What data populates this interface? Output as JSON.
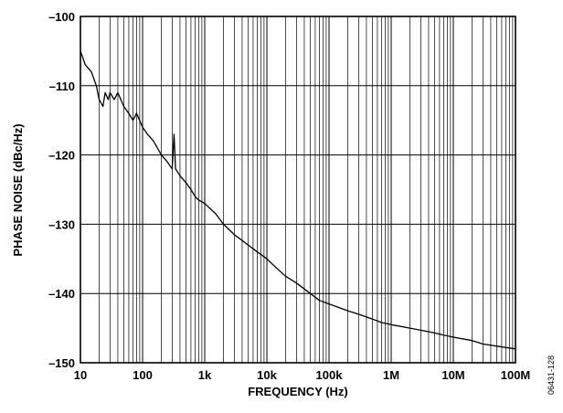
{
  "chart_data": {
    "type": "line",
    "xlabel": "FREQUENCY (Hz)",
    "ylabel": "PHASE NOISE (dBc/Hz)",
    "xscale": "log",
    "xlim": [
      10,
      100000000
    ],
    "ylim": [
      -150,
      -100
    ],
    "grid": true,
    "x_ticks": [
      10,
      100,
      1000,
      10000,
      100000,
      1000000,
      10000000,
      100000000
    ],
    "x_tick_labels": [
      "10",
      "100",
      "1k",
      "10k",
      "100k",
      "1M",
      "10M",
      "100M"
    ],
    "y_ticks": [
      -100,
      -110,
      -120,
      -130,
      -140,
      -150
    ],
    "y_tick_labels": [
      "–100",
      "–110",
      "–120",
      "–130",
      "–140",
      "–150"
    ],
    "figure_id": "06431-128",
    "line_color": "#000000",
    "series": [
      {
        "x": [
          10,
          12,
          15,
          18,
          20,
          23,
          25,
          28,
          30,
          35,
          40,
          50,
          60,
          70,
          80,
          100,
          120,
          150,
          200,
          250,
          300,
          320,
          340,
          400,
          500,
          600,
          700,
          800,
          1000,
          1500,
          2000,
          3000,
          5000,
          7000,
          10000,
          15000,
          20000,
          30000,
          50000,
          70000,
          100000,
          200000,
          300000,
          500000,
          700000,
          1000000,
          2000000,
          3000000,
          5000000,
          7000000,
          10000000,
          15000000,
          20000000,
          30000000,
          50000000,
          70000000,
          100000000
        ],
        "y": [
          -105,
          -107,
          -108,
          -110,
          -112,
          -113,
          -111,
          -112,
          -111,
          -112,
          -111,
          -113,
          -114,
          -115,
          -114,
          -116,
          -117,
          -118,
          -120,
          -121,
          -122,
          -117,
          -122,
          -123,
          -124,
          -125,
          -126,
          -126.5,
          -127,
          -128.5,
          -130,
          -131.5,
          -133,
          -134,
          -135,
          -136.5,
          -137.5,
          -138.5,
          -140,
          -141,
          -141.5,
          -142.5,
          -143,
          -143.7,
          -144.2,
          -144.5,
          -145,
          -145.3,
          -145.7,
          -146,
          -146.3,
          -146.6,
          -146.8,
          -147.3,
          -147.6,
          -147.8,
          -148
        ]
      }
    ]
  }
}
